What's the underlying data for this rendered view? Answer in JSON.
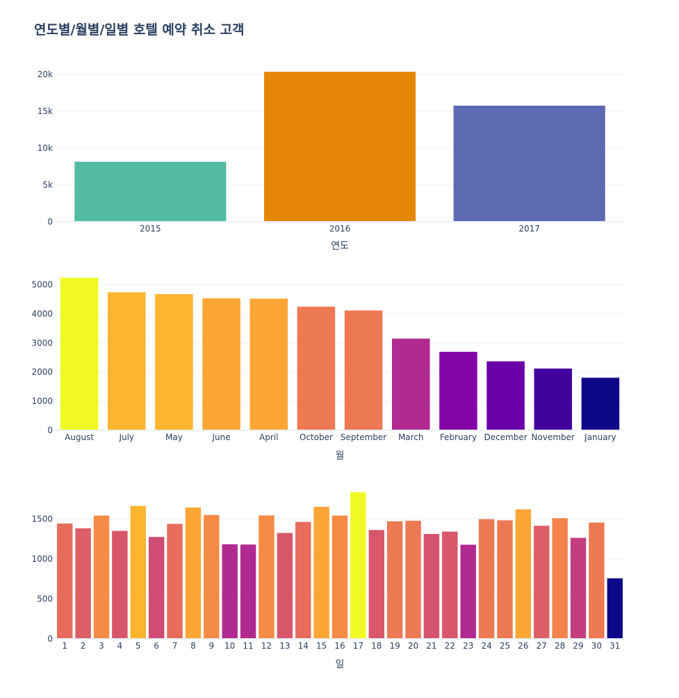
{
  "title": "연도별/월별/일별 호텔 예약 취소 고객",
  "chart_data": [
    {
      "type": "bar",
      "categories": [
        "2015",
        "2016",
        "2017"
      ],
      "values": [
        8142,
        20337,
        15745
      ],
      "xlabel": "연도",
      "ylabel": "",
      "ylim": [
        0,
        21400
      ],
      "yticks": [
        0,
        5000,
        10000,
        15000,
        20000
      ],
      "ytick_labels": [
        "0",
        "5k",
        "10k",
        "15k",
        "20k"
      ],
      "colors": [
        "#52bca3",
        "#e68606",
        "#5d69b1"
      ],
      "grid": true
    },
    {
      "type": "bar",
      "categories": [
        "August",
        "July",
        "May",
        "June",
        "April",
        "October",
        "September",
        "March",
        "February",
        "December",
        "November",
        "January"
      ],
      "values": [
        5239,
        4742,
        4677,
        4535,
        4524,
        4246,
        4116,
        3149,
        2696,
        2371,
        2122,
        1807
      ],
      "xlabel": "월",
      "ylabel": "",
      "ylim": [
        0,
        5300
      ],
      "yticks": [
        0,
        1000,
        2000,
        3000,
        4000,
        5000
      ],
      "ytick_labels": [
        "0",
        "1000",
        "2000",
        "3000",
        "4000",
        "5000"
      ],
      "colors": [
        "#f0f921",
        "#fdb42f",
        "#fdb42f",
        "#fca636",
        "#fca636",
        "#ed7953",
        "#ed7953",
        "#b12a90",
        "#8405a7",
        "#6a00a8",
        "#42039d",
        "#0d0887"
      ],
      "grid": true
    },
    {
      "type": "bar",
      "categories": [
        "1",
        "2",
        "3",
        "4",
        "5",
        "6",
        "7",
        "8",
        "9",
        "10",
        "11",
        "12",
        "13",
        "14",
        "15",
        "16",
        "17",
        "18",
        "19",
        "20",
        "21",
        "22",
        "23",
        "24",
        "25",
        "26",
        "27",
        "28",
        "29",
        "30",
        "31"
      ],
      "values": [
        1443,
        1383,
        1542,
        1351,
        1663,
        1275,
        1439,
        1644,
        1550,
        1183,
        1180,
        1544,
        1325,
        1463,
        1652,
        1542,
        1833,
        1362,
        1470,
        1478,
        1312,
        1342,
        1178,
        1498,
        1483,
        1620,
        1415,
        1510,
        1264,
        1455,
        758
      ],
      "xlabel": "일",
      "ylabel": "",
      "ylim": [
        0,
        1930
      ],
      "yticks": [
        0,
        500,
        1000,
        1500
      ],
      "ytick_labels": [
        "0",
        "500",
        "1000",
        "1500"
      ],
      "colors": [
        "#e66c5c",
        "#dc5e66",
        "#f58b45",
        "#d8576b",
        "#fdb42f",
        "#cf4c74",
        "#e66c5c",
        "#fca636",
        "#f58b45",
        "#b12a90",
        "#b12a90",
        "#f58b45",
        "#d8576b",
        "#e66c5c",
        "#fca636",
        "#f58b45",
        "#f0f921",
        "#d8576b",
        "#ed7953",
        "#ed7953",
        "#d5536f",
        "#d8576b",
        "#b12a90",
        "#ed7953",
        "#ed7953",
        "#fca636",
        "#dc5e66",
        "#f3824d",
        "#c43e7f",
        "#ed7953",
        "#0d0887"
      ],
      "grid": true
    }
  ]
}
